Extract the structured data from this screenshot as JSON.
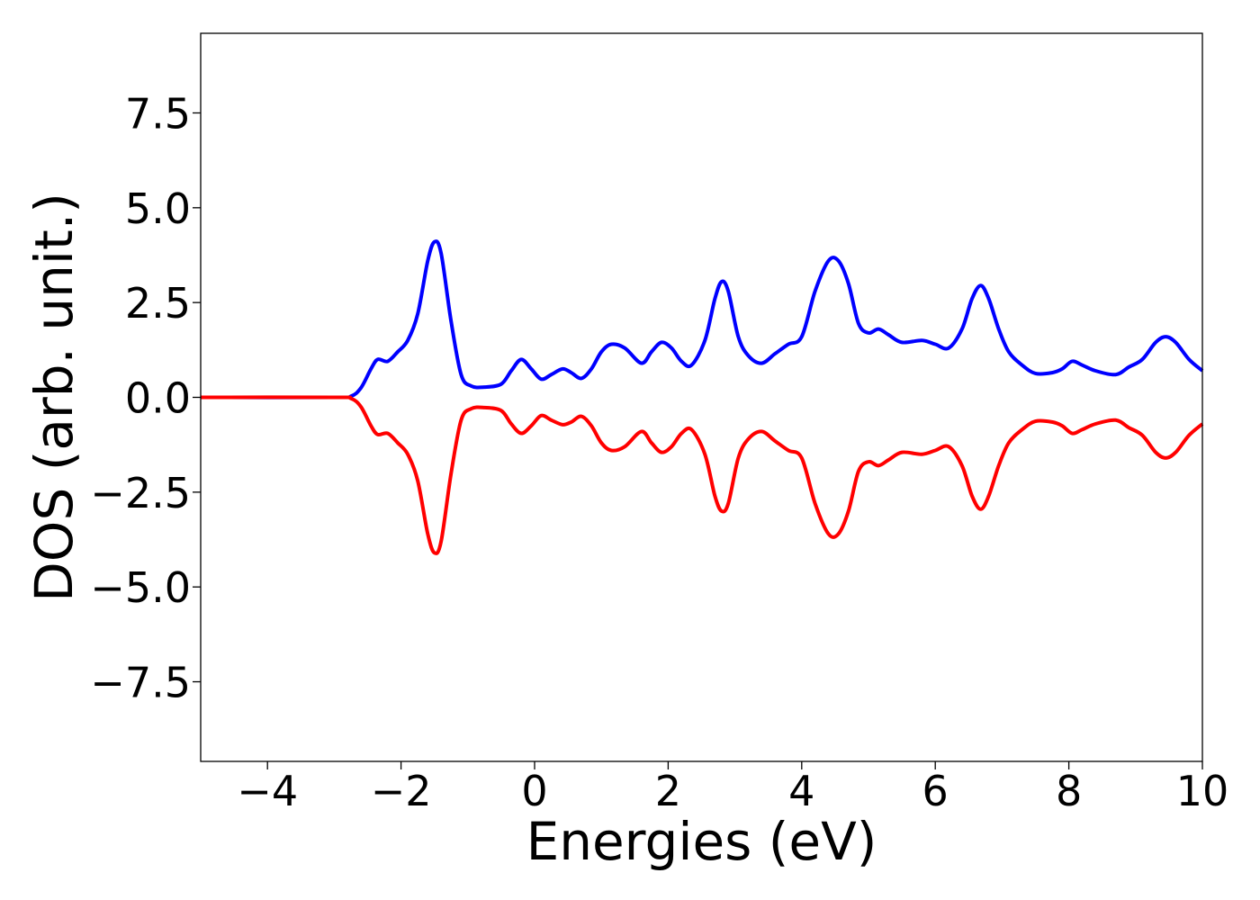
{
  "chart_data": {
    "type": "line",
    "title": "",
    "xlabel": "Energies (eV)",
    "ylabel": "DOS (arb. unit.)",
    "xlim": [
      -5,
      10
    ],
    "ylim": [
      -9.6,
      9.6
    ],
    "xticks": [
      -4,
      -2,
      0,
      2,
      4,
      6,
      8,
      10
    ],
    "xtick_labels": [
      "−4",
      "−2",
      "0",
      "2",
      "4",
      "6",
      "8",
      "10"
    ],
    "yticks": [
      -7.5,
      -5.0,
      -2.5,
      0.0,
      2.5,
      5.0,
      7.5
    ],
    "ytick_labels": [
      "−7.5",
      "−5.0",
      "−2.5",
      "0.0",
      "2.5",
      "5.0",
      "7.5"
    ],
    "grid": false,
    "series": [
      {
        "color": "#0000ff",
        "points": [
          [
            -5.0,
            0.0
          ],
          [
            -3.0,
            0.0
          ],
          [
            -2.75,
            0.03
          ],
          [
            -2.6,
            0.25
          ],
          [
            -2.45,
            0.75
          ],
          [
            -2.35,
            1.0
          ],
          [
            -2.2,
            0.95
          ],
          [
            -2.05,
            1.2
          ],
          [
            -1.9,
            1.5
          ],
          [
            -1.75,
            2.2
          ],
          [
            -1.6,
            3.6
          ],
          [
            -1.5,
            4.1
          ],
          [
            -1.4,
            3.8
          ],
          [
            -1.25,
            2.0
          ],
          [
            -1.1,
            0.6
          ],
          [
            -0.95,
            0.3
          ],
          [
            -0.75,
            0.27
          ],
          [
            -0.5,
            0.35
          ],
          [
            -0.35,
            0.7
          ],
          [
            -0.2,
            1.0
          ],
          [
            -0.05,
            0.75
          ],
          [
            0.1,
            0.48
          ],
          [
            0.25,
            0.6
          ],
          [
            0.42,
            0.75
          ],
          [
            0.55,
            0.65
          ],
          [
            0.7,
            0.5
          ],
          [
            0.85,
            0.75
          ],
          [
            1.0,
            1.2
          ],
          [
            1.15,
            1.4
          ],
          [
            1.35,
            1.3
          ],
          [
            1.6,
            0.9
          ],
          [
            1.75,
            1.2
          ],
          [
            1.9,
            1.45
          ],
          [
            2.05,
            1.3
          ],
          [
            2.2,
            0.95
          ],
          [
            2.35,
            0.85
          ],
          [
            2.55,
            1.5
          ],
          [
            2.7,
            2.6
          ],
          [
            2.8,
            3.05
          ],
          [
            2.9,
            2.8
          ],
          [
            3.05,
            1.6
          ],
          [
            3.2,
            1.1
          ],
          [
            3.4,
            0.9
          ],
          [
            3.6,
            1.15
          ],
          [
            3.8,
            1.4
          ],
          [
            4.0,
            1.6
          ],
          [
            4.2,
            2.8
          ],
          [
            4.4,
            3.6
          ],
          [
            4.55,
            3.6
          ],
          [
            4.7,
            3.0
          ],
          [
            4.85,
            1.95
          ],
          [
            5.0,
            1.7
          ],
          [
            5.15,
            1.8
          ],
          [
            5.3,
            1.65
          ],
          [
            5.5,
            1.45
          ],
          [
            5.8,
            1.5
          ],
          [
            6.0,
            1.4
          ],
          [
            6.2,
            1.3
          ],
          [
            6.4,
            1.8
          ],
          [
            6.55,
            2.6
          ],
          [
            6.68,
            2.95
          ],
          [
            6.8,
            2.6
          ],
          [
            6.95,
            1.8
          ],
          [
            7.1,
            1.2
          ],
          [
            7.3,
            0.85
          ],
          [
            7.5,
            0.63
          ],
          [
            7.75,
            0.65
          ],
          [
            7.9,
            0.75
          ],
          [
            8.05,
            0.95
          ],
          [
            8.2,
            0.85
          ],
          [
            8.4,
            0.7
          ],
          [
            8.7,
            0.6
          ],
          [
            8.9,
            0.8
          ],
          [
            9.1,
            1.0
          ],
          [
            9.3,
            1.45
          ],
          [
            9.45,
            1.6
          ],
          [
            9.6,
            1.45
          ],
          [
            9.8,
            1.0
          ],
          [
            10.0,
            0.7
          ]
        ]
      },
      {
        "color": "#ff0000",
        "points": [
          [
            -5.0,
            0.0
          ],
          [
            -3.0,
            0.0
          ],
          [
            -2.75,
            -0.03
          ],
          [
            -2.6,
            -0.25
          ],
          [
            -2.45,
            -0.75
          ],
          [
            -2.35,
            -0.98
          ],
          [
            -2.2,
            -0.95
          ],
          [
            -2.05,
            -1.2
          ],
          [
            -1.9,
            -1.5
          ],
          [
            -1.75,
            -2.2
          ],
          [
            -1.6,
            -3.6
          ],
          [
            -1.5,
            -4.1
          ],
          [
            -1.4,
            -3.8
          ],
          [
            -1.25,
            -2.0
          ],
          [
            -1.1,
            -0.6
          ],
          [
            -0.95,
            -0.3
          ],
          [
            -0.75,
            -0.27
          ],
          [
            -0.5,
            -0.35
          ],
          [
            -0.35,
            -0.7
          ],
          [
            -0.2,
            -0.95
          ],
          [
            -0.05,
            -0.75
          ],
          [
            0.1,
            -0.48
          ],
          [
            0.25,
            -0.6
          ],
          [
            0.42,
            -0.72
          ],
          [
            0.55,
            -0.65
          ],
          [
            0.7,
            -0.5
          ],
          [
            0.85,
            -0.75
          ],
          [
            1.0,
            -1.2
          ],
          [
            1.15,
            -1.4
          ],
          [
            1.35,
            -1.3
          ],
          [
            1.6,
            -0.9
          ],
          [
            1.75,
            -1.2
          ],
          [
            1.9,
            -1.45
          ],
          [
            2.05,
            -1.3
          ],
          [
            2.2,
            -0.95
          ],
          [
            2.35,
            -0.85
          ],
          [
            2.55,
            -1.5
          ],
          [
            2.7,
            -2.6
          ],
          [
            2.8,
            -3.0
          ],
          [
            2.9,
            -2.8
          ],
          [
            3.05,
            -1.6
          ],
          [
            3.2,
            -1.1
          ],
          [
            3.4,
            -0.9
          ],
          [
            3.6,
            -1.15
          ],
          [
            3.8,
            -1.4
          ],
          [
            4.0,
            -1.6
          ],
          [
            4.2,
            -2.8
          ],
          [
            4.4,
            -3.6
          ],
          [
            4.55,
            -3.6
          ],
          [
            4.7,
            -3.0
          ],
          [
            4.85,
            -1.95
          ],
          [
            5.0,
            -1.7
          ],
          [
            5.15,
            -1.8
          ],
          [
            5.3,
            -1.65
          ],
          [
            5.5,
            -1.45
          ],
          [
            5.8,
            -1.5
          ],
          [
            6.0,
            -1.4
          ],
          [
            6.2,
            -1.3
          ],
          [
            6.4,
            -1.8
          ],
          [
            6.55,
            -2.6
          ],
          [
            6.68,
            -2.95
          ],
          [
            6.8,
            -2.6
          ],
          [
            6.95,
            -1.8
          ],
          [
            7.1,
            -1.2
          ],
          [
            7.3,
            -0.85
          ],
          [
            7.5,
            -0.63
          ],
          [
            7.75,
            -0.65
          ],
          [
            7.9,
            -0.75
          ],
          [
            8.05,
            -0.95
          ],
          [
            8.2,
            -0.85
          ],
          [
            8.4,
            -0.7
          ],
          [
            8.7,
            -0.6
          ],
          [
            8.9,
            -0.8
          ],
          [
            9.1,
            -1.0
          ],
          [
            9.3,
            -1.45
          ],
          [
            9.45,
            -1.6
          ],
          [
            9.6,
            -1.45
          ],
          [
            9.8,
            -1.0
          ],
          [
            10.0,
            -0.7
          ]
        ]
      }
    ]
  }
}
